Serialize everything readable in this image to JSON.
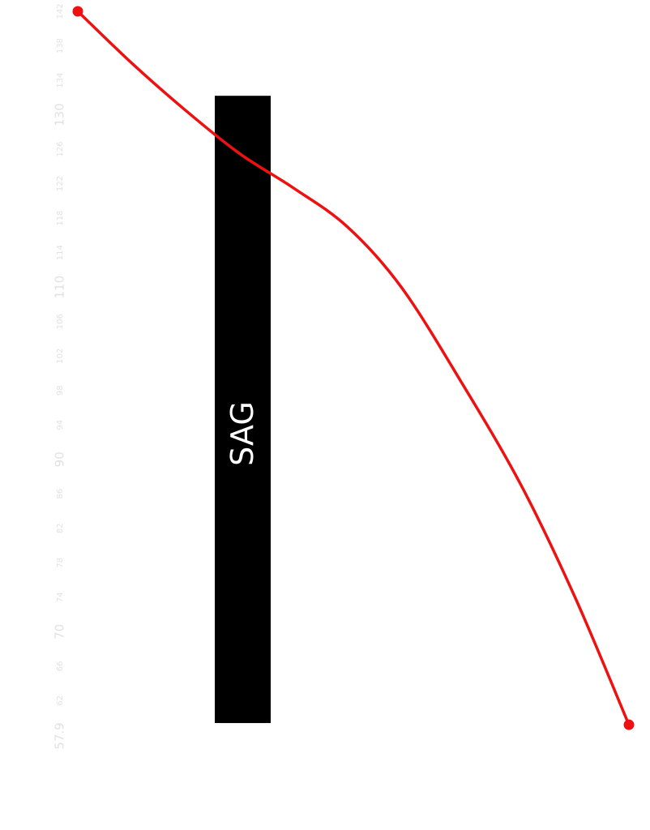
{
  "chart_data": {
    "type": "line",
    "orientation": "rotated-90",
    "title": "",
    "xlabel": "",
    "ylabel": "",
    "xlim": [
      57.9,
      142
    ],
    "ticks": [
      {
        "value": 57.9,
        "label": "57.9",
        "major": true
      },
      {
        "value": 62,
        "label": "62",
        "major": false
      },
      {
        "value": 66,
        "label": "66",
        "major": false
      },
      {
        "value": 70,
        "label": "70",
        "major": true
      },
      {
        "value": 74,
        "label": "74",
        "major": false
      },
      {
        "value": 78,
        "label": "78",
        "major": false
      },
      {
        "value": 82,
        "label": "82",
        "major": false
      },
      {
        "value": 86,
        "label": "86",
        "major": false
      },
      {
        "value": 90,
        "label": "90",
        "major": true
      },
      {
        "value": 94,
        "label": "94",
        "major": false
      },
      {
        "value": 98,
        "label": "98",
        "major": false
      },
      {
        "value": 102,
        "label": "102",
        "major": false
      },
      {
        "value": 106,
        "label": "106",
        "major": false
      },
      {
        "value": 110,
        "label": "110",
        "major": true
      },
      {
        "value": 114,
        "label": "114",
        "major": false
      },
      {
        "value": 118,
        "label": "118",
        "major": false
      },
      {
        "value": 122,
        "label": "122",
        "major": false
      },
      {
        "value": 126,
        "label": "126",
        "major": false
      },
      {
        "value": 130,
        "label": "130",
        "major": true
      },
      {
        "value": 134,
        "label": "134",
        "major": false
      },
      {
        "value": 138,
        "label": "138",
        "major": false
      },
      {
        "value": 142,
        "label": "142",
        "major": false
      }
    ],
    "bar": {
      "label": "SAG",
      "range": [
        59.4,
        132.2
      ],
      "color": "#000000"
    },
    "series": [
      {
        "color": "#ee1111",
        "points": [
          {
            "x": 142.0,
            "y": 0.06
          },
          {
            "x": 136.0,
            "y": 0.15
          },
          {
            "x": 130.5,
            "y": 0.24
          },
          {
            "x": 125.5,
            "y": 0.33
          },
          {
            "x": 121.5,
            "y": 0.42
          },
          {
            "x": 117.0,
            "y": 0.51
          },
          {
            "x": 110.0,
            "y": 0.6
          },
          {
            "x": 99.0,
            "y": 0.7
          },
          {
            "x": 87.0,
            "y": 0.8
          },
          {
            "x": 74.0,
            "y": 0.89
          },
          {
            "x": 59.2,
            "y": 0.98
          }
        ]
      }
    ],
    "grid": false,
    "legend": "none"
  }
}
